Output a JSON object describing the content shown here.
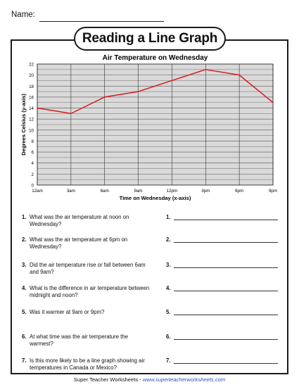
{
  "header": {
    "name_label": "Name:"
  },
  "worksheet": {
    "title": "Reading a Line Graph"
  },
  "chart_data": {
    "type": "line",
    "title": "Air Temperature on Wednesday",
    "xlabel": "Time on Wednesday (x-axis)",
    "ylabel": "Degrees Celsius (y-axis)",
    "categories": [
      "12am",
      "3am",
      "6am",
      "9am",
      "12pm",
      "3pm",
      "6pm",
      "9pm"
    ],
    "values": [
      14,
      13,
      16,
      17,
      19,
      21,
      20,
      15
    ],
    "ylim": [
      0,
      22
    ],
    "yticks": [
      "0",
      "2",
      "4",
      "6",
      "8",
      "10",
      "12",
      "14",
      "16",
      "18",
      "20",
      "22"
    ],
    "grid": true,
    "line_color": "#d81a1a",
    "plot_background": "#d9d9d9"
  },
  "questions": [
    {
      "num": "1.",
      "text": "What was the air temperature at noon on Wednesday?",
      "answer_num": "1."
    },
    {
      "num": "2.",
      "text": "What was the air temperature at 6pm on Wednesday?",
      "answer_num": "2."
    },
    {
      "num": "3.",
      "text": "Did the air temperature rise or fall between 6am and 9am?",
      "answer_num": "3."
    },
    {
      "num": "4.",
      "text": "What is the difference in air temperature between midnight and noon?",
      "answer_num": "4."
    },
    {
      "num": "5.",
      "text": "Was it warmer at 9am or 9pm?",
      "answer_num": "5."
    },
    {
      "num": "6.",
      "text": "At what time was the air temperature the warmest?",
      "answer_num": "6."
    },
    {
      "num": "7.",
      "text": "Is this more likely to be a line graph showing air temperatures in Canada or Mexico?",
      "answer_num": "7."
    }
  ],
  "footer": {
    "brand": "Super Teacher Worksheets - ",
    "url": "www.superteacherworksheets.com"
  }
}
